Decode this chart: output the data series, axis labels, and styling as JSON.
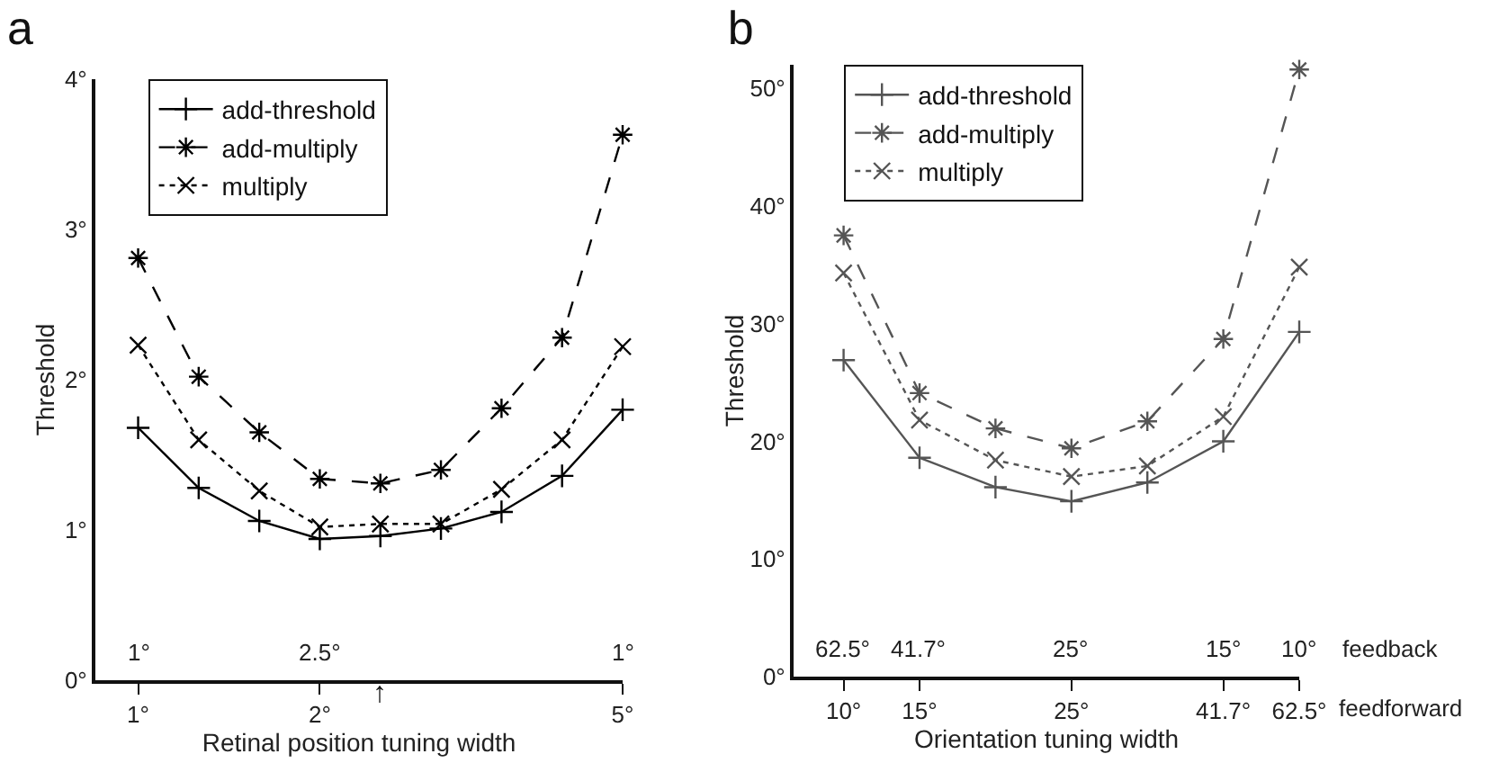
{
  "chart_data": [
    {
      "type": "line",
      "title": "a",
      "xlabel": "Retinal position tuning width",
      "ylabel": "Threshold",
      "legend": "top left",
      "grid": false,
      "categories": [
        "1°",
        null,
        null,
        "2°",
        null,
        null,
        null,
        null,
        "5°"
      ],
      "ylim": [
        0,
        4
      ],
      "yticks": [
        {
          "value": 0,
          "label": "0°"
        },
        {
          "value": 1,
          "label": "1°"
        },
        {
          "value": 2,
          "label": "2°"
        },
        {
          "value": 3,
          "label": "3°"
        },
        {
          "value": 4,
          "label": "4°"
        }
      ],
      "annotations": [
        "1°",
        "2.5°",
        "1°",
        "↑"
      ],
      "series": [
        {
          "name": "add-threshold",
          "color": "#000000",
          "marker": "plus",
          "line_style": "solid",
          "values": [
            1.68,
            1.28,
            1.06,
            0.94,
            0.96,
            1.01,
            1.12,
            1.36,
            1.8
          ]
        },
        {
          "name": "add-multiply",
          "color": "#000000",
          "marker": "cross",
          "line_style": "dashed",
          "values": [
            2.81,
            2.02,
            1.65,
            1.34,
            1.31,
            1.4,
            1.81,
            2.28,
            3.63
          ]
        },
        {
          "name": "multiply",
          "color": "#000000",
          "marker": "x",
          "line_style": "dotted",
          "values": [
            2.23,
            1.6,
            1.26,
            1.02,
            1.04,
            1.04,
            1.27,
            1.6,
            2.22
          ]
        }
      ]
    },
    {
      "type": "line",
      "title": "b",
      "xlabel": "Orientation tuning width",
      "ylabel": "Threshold",
      "legend": "top left",
      "grid": false,
      "categories": [
        "10°",
        "15°",
        null,
        "25°",
        null,
        "41.7°",
        "62.5°"
      ],
      "ylim": [
        0,
        52
      ],
      "yticks": [
        {
          "value": 0,
          "label": "0°"
        },
        {
          "value": 10,
          "label": "10°"
        },
        {
          "value": 20,
          "label": "20°"
        },
        {
          "value": 30,
          "label": "30°"
        },
        {
          "value": 40,
          "label": "40°"
        },
        {
          "value": 50,
          "label": "50°"
        }
      ],
      "annotations": [
        "62.5°",
        "41.7°",
        "25°",
        "15°",
        "10°",
        "feedback",
        "feedforward"
      ],
      "series": [
        {
          "name": "add-threshold",
          "color": "#555555",
          "marker": "plus",
          "line_style": "solid",
          "values": [
            26.9,
            18.6,
            16.1,
            14.9,
            16.5,
            20.0,
            29.3
          ]
        },
        {
          "name": "add-multiply",
          "color": "#555555",
          "marker": "cross",
          "line_style": "dashed",
          "values": [
            37.5,
            24.1,
            21.1,
            19.4,
            21.7,
            28.7,
            51.6
          ]
        },
        {
          "name": "multiply",
          "color": "#555555",
          "marker": "x",
          "line_style": "dotted",
          "values": [
            34.3,
            21.8,
            18.4,
            17.0,
            17.9,
            22.1,
            34.8
          ]
        }
      ]
    }
  ]
}
